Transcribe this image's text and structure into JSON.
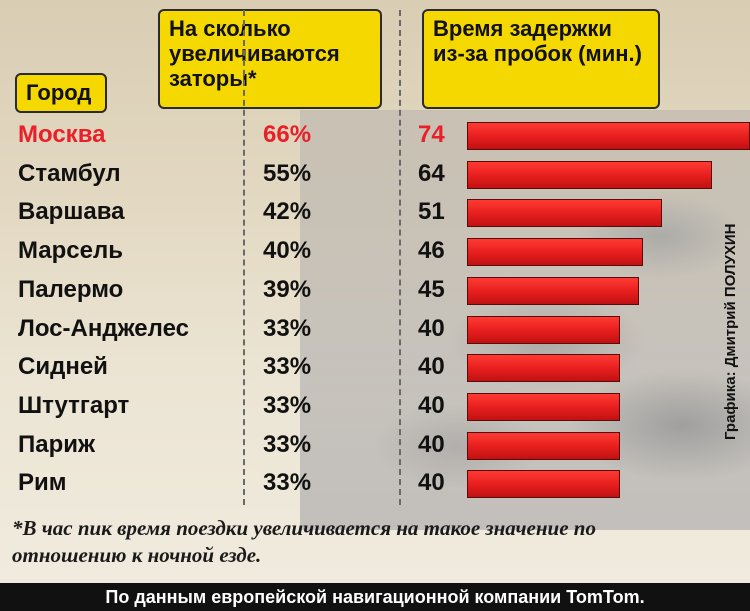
{
  "headers": {
    "city": "Город",
    "increase": "На сколько увеличиваются заторы*",
    "delay": "Время задержки из-за пробок (мин.)"
  },
  "chart_data": {
    "type": "bar",
    "categories": [
      "Москва",
      "Стамбул",
      "Варшава",
      "Марсель",
      "Палермо",
      "Лос-Анджелес",
      "Сидней",
      "Штутгарт",
      "Париж",
      "Рим"
    ],
    "increase_labels": [
      "66%",
      "55%",
      "42%",
      "40%",
      "39%",
      "33%",
      "33%",
      "33%",
      "33%",
      "33%"
    ],
    "values": [
      74,
      64,
      51,
      46,
      45,
      40,
      40,
      40,
      40,
      40
    ],
    "highlight": "Москва",
    "highlight_color": "#e8202a",
    "bar_color": "#e51d1d"
  },
  "credit": "Графика: Дмитрий ПОЛУХИН",
  "footnote": "*В час пик время поездки увеличивается на такое значение по отношению к ночной езде.",
  "source": "По данным европейской навигационной компании TomTom."
}
